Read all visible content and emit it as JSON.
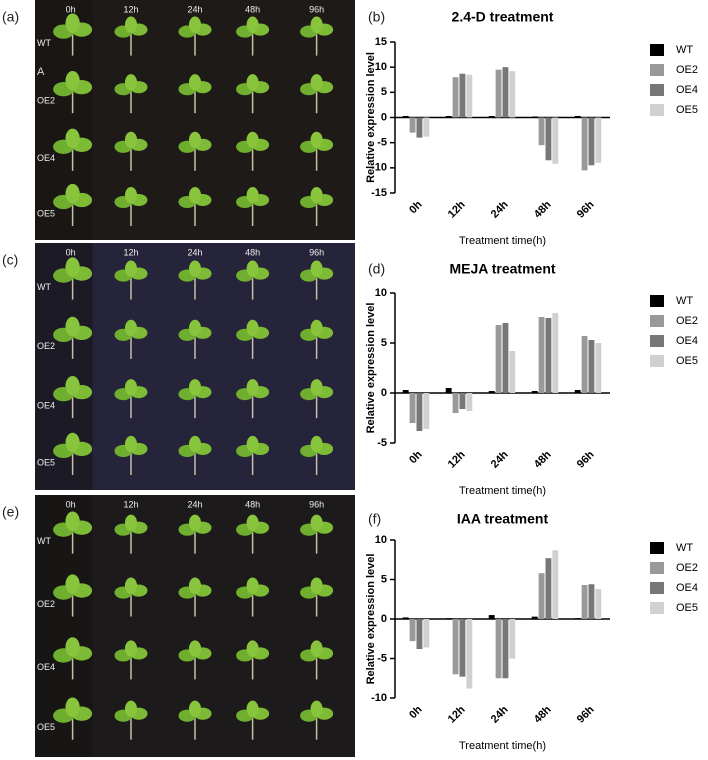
{
  "photos": [
    {
      "label": "(a)",
      "mark": "A",
      "columns": [
        "0h",
        "12h",
        "24h",
        "48h",
        "96h"
      ],
      "rows": [
        "WT",
        "OE2",
        "OE4",
        "OE5"
      ]
    },
    {
      "label": "(c)",
      "columns": [
        "0h",
        "12h",
        "24h",
        "48h",
        "96h"
      ],
      "rows": [
        "WT",
        "OE2",
        "OE4",
        "OE5"
      ]
    },
    {
      "label": "(e)",
      "columns": [
        "0h",
        "12h",
        "24h",
        "48h",
        "96h"
      ],
      "rows": [
        "WT",
        "OE2",
        "OE4",
        "OE5"
      ]
    }
  ],
  "chart_data": [
    {
      "type": "bar",
      "panel": "(b)",
      "title": "2.4-D treatment",
      "ylabel": "Relative expression level",
      "xlabel": "Treatment time(h)",
      "categories": [
        "0h",
        "12h",
        "24h",
        "48h",
        "96h"
      ],
      "ylim": [
        -15,
        15
      ],
      "yticks": [
        -15,
        -10,
        -5,
        0,
        5,
        10,
        15
      ],
      "series": [
        {
          "name": "WT",
          "color": "#000000",
          "values": [
            0.3,
            0.3,
            0.3,
            0.2,
            0.3
          ]
        },
        {
          "name": "OE2",
          "color": "#999999",
          "values": [
            -3,
            8,
            9.5,
            -5.5,
            -10.5
          ]
        },
        {
          "name": "OE4",
          "color": "#777777",
          "values": [
            -4,
            8.7,
            10,
            -8.5,
            -9.5
          ]
        },
        {
          "name": "OE5",
          "color": "#d0d0d0",
          "values": [
            -3.8,
            8.5,
            9.2,
            -9.2,
            -9
          ]
        }
      ]
    },
    {
      "type": "bar",
      "panel": "(d)",
      "title": "MEJA treatment",
      "ylabel": "Relative expression level",
      "xlabel": "Treatment time(h)",
      "categories": [
        "0h",
        "12h",
        "24h",
        "48h",
        "96h"
      ],
      "ylim": [
        -5,
        10
      ],
      "yticks": [
        -5,
        0,
        5,
        10
      ],
      "series": [
        {
          "name": "WT",
          "color": "#000000",
          "values": [
            0.3,
            0.5,
            0.2,
            0.2,
            0.3
          ]
        },
        {
          "name": "OE2",
          "color": "#999999",
          "values": [
            -3,
            -2,
            6.8,
            7.6,
            5.7
          ]
        },
        {
          "name": "OE4",
          "color": "#777777",
          "values": [
            -3.8,
            -1.6,
            7,
            7.5,
            5.3
          ]
        },
        {
          "name": "OE5",
          "color": "#d0d0d0",
          "values": [
            -3.6,
            -1.8,
            4.2,
            8,
            5
          ]
        }
      ]
    },
    {
      "type": "bar",
      "panel": "(f)",
      "title": "IAA treatment",
      "ylabel": "Relative expression level",
      "xlabel": "Treatment time(h)",
      "categories": [
        "0h",
        "12h",
        "24h",
        "48h",
        "96h"
      ],
      "ylim": [
        -10,
        10
      ],
      "yticks": [
        -10,
        -5,
        0,
        5,
        10
      ],
      "series": [
        {
          "name": "WT",
          "color": "#000000",
          "values": [
            0.2,
            0.1,
            0.5,
            0.3,
            0.1
          ]
        },
        {
          "name": "OE2",
          "color": "#999999",
          "values": [
            -2.8,
            -7,
            -7.5,
            5.8,
            4.3
          ]
        },
        {
          "name": "OE4",
          "color": "#777777",
          "values": [
            -3.8,
            -7.3,
            -7.5,
            7.7,
            4.4
          ]
        },
        {
          "name": "OE5",
          "color": "#d0d0d0",
          "values": [
            -3.6,
            -8.8,
            -5,
            8.7,
            3.8
          ]
        }
      ]
    }
  ]
}
